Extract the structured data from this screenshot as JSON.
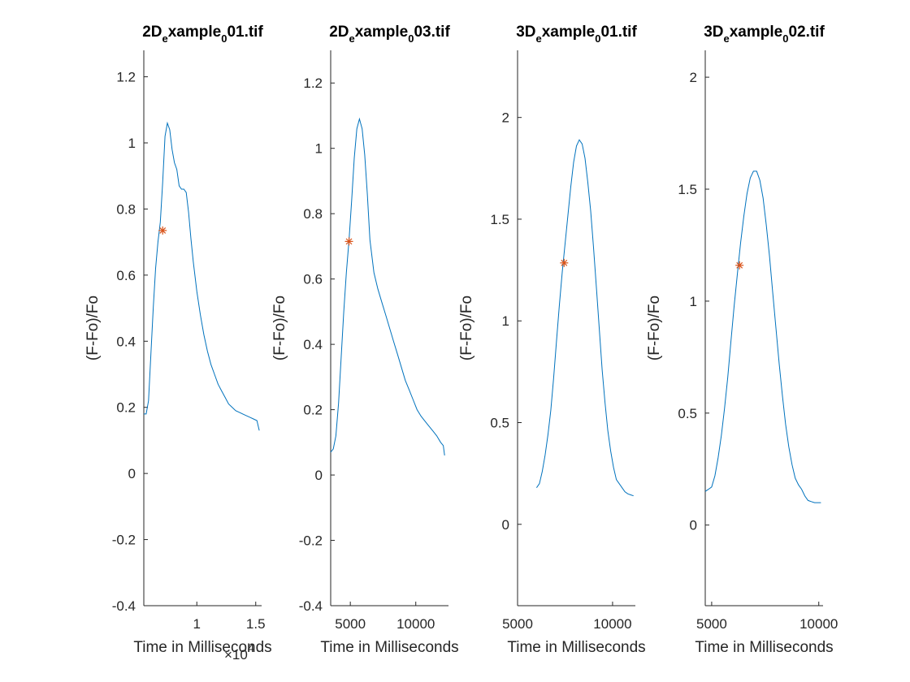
{
  "colors": {
    "line": "#0072BD",
    "marker": "#D95319",
    "axes": "#262626"
  },
  "chart_data": [
    {
      "type": "line",
      "title": {
        "main": "2D",
        "sub1": "e",
        "mid": "xample",
        "sub2": "0",
        "end": "01.tif"
      },
      "xlabel": "Time in Milliseconds",
      "ylabel": "(F-Fo)/Fo",
      "x_exponent": {
        "prefix": "×10",
        "power": "4"
      },
      "xlim": [
        5500,
        15500
      ],
      "ylim": [
        -0.4,
        1.28
      ],
      "xticks": [
        10000,
        15000
      ],
      "xtick_labels": [
        "1",
        "1.5"
      ],
      "yticks": [
        -0.4,
        -0.2,
        0,
        0.2,
        0.4,
        0.6,
        0.8,
        1,
        1.2
      ],
      "ytick_labels": [
        "-0.4",
        "-0.2",
        "0",
        "0.2",
        "0.4",
        "0.6",
        "0.8",
        "1",
        "1.2"
      ],
      "grid": false,
      "series": [
        {
          "x": [
            5500,
            5700,
            5900,
            6100,
            6300,
            6500,
            6700,
            6900,
            7100,
            7300,
            7500,
            7700,
            7900,
            8100,
            8300,
            8500,
            8700,
            8900,
            9100,
            9300,
            9500,
            9700,
            10000,
            10300,
            10600,
            10900,
            11200,
            11500,
            11800,
            12100,
            12400,
            12700,
            13000,
            13300,
            13600,
            13900,
            14200,
            14500,
            14800,
            15100,
            15300
          ],
          "y": [
            0.18,
            0.18,
            0.22,
            0.36,
            0.5,
            0.62,
            0.7,
            0.76,
            0.88,
            1.02,
            1.06,
            1.04,
            0.98,
            0.94,
            0.92,
            0.87,
            0.86,
            0.86,
            0.85,
            0.79,
            0.71,
            0.64,
            0.55,
            0.48,
            0.42,
            0.37,
            0.33,
            0.3,
            0.27,
            0.25,
            0.23,
            0.21,
            0.2,
            0.19,
            0.185,
            0.18,
            0.175,
            0.17,
            0.165,
            0.16,
            0.13
          ]
        }
      ],
      "markers": [
        {
          "x": 7100,
          "y": 0.735
        }
      ]
    },
    {
      "type": "line",
      "title": {
        "main": "2D",
        "sub1": "e",
        "mid": "xample",
        "sub2": "0",
        "end": "03.tif"
      },
      "xlabel": "Time in Milliseconds",
      "ylabel": "(F-Fo)/Fo",
      "xlim": [
        3500,
        12500
      ],
      "ylim": [
        -0.4,
        1.3
      ],
      "xticks": [
        5000,
        10000
      ],
      "xtick_labels": [
        "5000",
        "10000"
      ],
      "yticks": [
        -0.4,
        -0.2,
        0,
        0.2,
        0.4,
        0.6,
        0.8,
        1,
        1.2
      ],
      "ytick_labels": [
        "-0.4",
        "-0.2",
        "0",
        "0.2",
        "0.4",
        "0.6",
        "0.8",
        "1",
        "1.2"
      ],
      "grid": false,
      "series": [
        {
          "x": [
            3500,
            3700,
            3900,
            4100,
            4300,
            4500,
            4700,
            4900,
            5100,
            5300,
            5500,
            5700,
            5900,
            6100,
            6300,
            6500,
            6800,
            7100,
            7400,
            7700,
            8000,
            8300,
            8600,
            8900,
            9200,
            9500,
            9800,
            10100,
            10400,
            10700,
            11000,
            11300,
            11600,
            11900,
            12100,
            12200
          ],
          "y": [
            0.07,
            0.08,
            0.12,
            0.22,
            0.36,
            0.5,
            0.62,
            0.72,
            0.84,
            0.97,
            1.06,
            1.09,
            1.06,
            0.98,
            0.86,
            0.72,
            0.62,
            0.57,
            0.53,
            0.49,
            0.45,
            0.41,
            0.37,
            0.33,
            0.29,
            0.26,
            0.23,
            0.2,
            0.18,
            0.165,
            0.15,
            0.135,
            0.12,
            0.1,
            0.09,
            0.06
          ]
        }
      ],
      "markers": [
        {
          "x": 4900,
          "y": 0.715
        }
      ]
    },
    {
      "type": "line",
      "title": {
        "main": "3D",
        "sub1": "e",
        "mid": "xample",
        "sub2": "0",
        "end": "01.tif"
      },
      "xlabel": "Time in Milliseconds",
      "ylabel": "(F-Fo)/Fo",
      "xlim": [
        5000,
        11200
      ],
      "ylim": [
        -0.4,
        2.33
      ],
      "xticks": [
        5000,
        10000
      ],
      "xtick_labels": [
        "5000",
        "10000"
      ],
      "yticks": [
        0,
        0.5,
        1,
        1.5,
        2
      ],
      "ytick_labels": [
        "0",
        "0.5",
        "1",
        "1.5",
        "2"
      ],
      "grid": false,
      "series": [
        {
          "x": [
            6000,
            6150,
            6300,
            6450,
            6600,
            6750,
            6900,
            7050,
            7200,
            7350,
            7500,
            7650,
            7800,
            7950,
            8100,
            8250,
            8400,
            8550,
            8700,
            8850,
            9000,
            9150,
            9300,
            9450,
            9600,
            9750,
            9900,
            10050,
            10200,
            10350,
            10500,
            10650,
            10800,
            10950,
            11100
          ],
          "y": [
            0.18,
            0.2,
            0.26,
            0.34,
            0.44,
            0.56,
            0.72,
            0.9,
            1.08,
            1.24,
            1.38,
            1.52,
            1.66,
            1.78,
            1.86,
            1.89,
            1.87,
            1.8,
            1.68,
            1.54,
            1.36,
            1.16,
            0.96,
            0.76,
            0.6,
            0.46,
            0.36,
            0.28,
            0.22,
            0.2,
            0.18,
            0.16,
            0.15,
            0.145,
            0.14
          ]
        }
      ],
      "markers": [
        {
          "x": 7450,
          "y": 1.285
        }
      ]
    },
    {
      "type": "line",
      "title": {
        "main": "3D",
        "sub1": "e",
        "mid": "xample",
        "sub2": "0",
        "end": "02.tif"
      },
      "xlabel": "Time in Milliseconds",
      "ylabel": "(F-Fo)/Fo",
      "xlim": [
        4700,
        10200
      ],
      "ylim": [
        -0.36,
        2.12
      ],
      "xticks": [
        5000,
        10000
      ],
      "xtick_labels": [
        "5000",
        "10000"
      ],
      "yticks": [
        0,
        0.5,
        1,
        1.5,
        2
      ],
      "ytick_labels": [
        "0",
        "0.5",
        "1",
        "1.5",
        "2"
      ],
      "grid": false,
      "series": [
        {
          "x": [
            4700,
            4850,
            5000,
            5150,
            5300,
            5450,
            5600,
            5750,
            5900,
            6050,
            6200,
            6350,
            6500,
            6650,
            6800,
            6950,
            7100,
            7250,
            7400,
            7550,
            7700,
            7850,
            8000,
            8150,
            8300,
            8450,
            8600,
            8750,
            8900,
            9050,
            9200,
            9350,
            9500,
            9650,
            9800,
            9950,
            10100
          ],
          "y": [
            0.15,
            0.16,
            0.17,
            0.22,
            0.3,
            0.4,
            0.52,
            0.66,
            0.82,
            0.98,
            1.12,
            1.26,
            1.38,
            1.48,
            1.55,
            1.58,
            1.58,
            1.54,
            1.46,
            1.34,
            1.2,
            1.04,
            0.88,
            0.72,
            0.58,
            0.45,
            0.35,
            0.27,
            0.21,
            0.18,
            0.16,
            0.13,
            0.11,
            0.105,
            0.1,
            0.1,
            0.1
          ]
        }
      ],
      "markers": [
        {
          "x": 6300,
          "y": 1.16
        }
      ]
    }
  ]
}
